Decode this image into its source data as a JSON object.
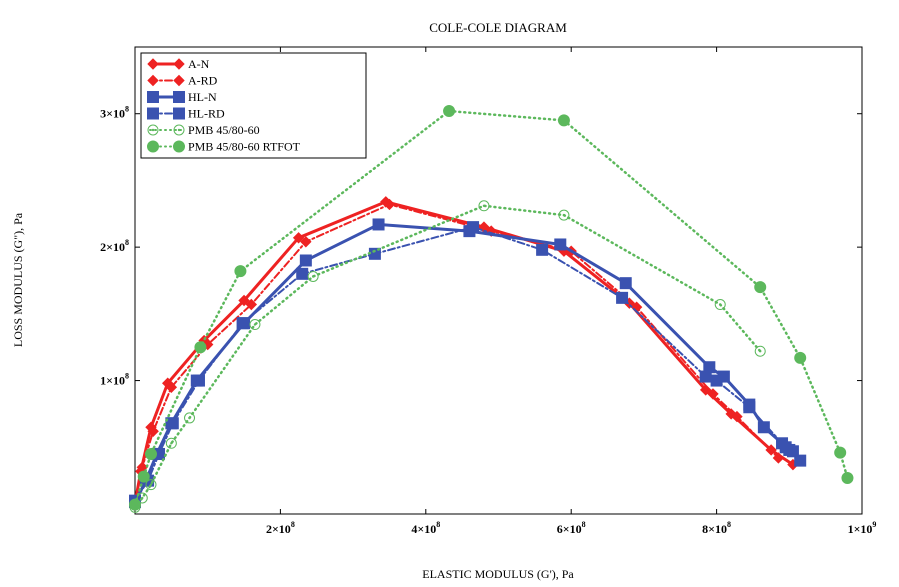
{
  "chart_data": {
    "type": "line",
    "title": "COLE-COLE DIAGRAM",
    "xlabel": "ELASTIC MODULUS (G'), Pa",
    "ylabel": "LOSS MODULUS (G\"), Pa",
    "xlim": [
      0,
      1000000000
    ],
    "ylim": [
      0,
      350000000
    ],
    "grid": false,
    "legend_position": "top-left",
    "x_ticks": [
      {
        "value": 200000000,
        "label": "2×10",
        "exp": "8"
      },
      {
        "value": 400000000,
        "label": "4×10",
        "exp": "8"
      },
      {
        "value": 600000000,
        "label": "6×10",
        "exp": "8"
      },
      {
        "value": 800000000,
        "label": "8×10",
        "exp": "8"
      },
      {
        "value": 1000000000,
        "label": "1×10",
        "exp": "9"
      }
    ],
    "y_ticks": [
      {
        "value": 100000000,
        "label": "1×10",
        "exp": "8"
      },
      {
        "value": 200000000,
        "label": "2×10",
        "exp": "8"
      },
      {
        "value": 300000000,
        "label": "3×10",
        "exp": "8"
      }
    ],
    "series": [
      {
        "name": "A-N",
        "color": "#ee2222",
        "dash": "solid",
        "marker": "diamond-filled",
        "points": [
          [
            0,
            8000000
          ],
          [
            8000000,
            32000000
          ],
          [
            22000000,
            65000000
          ],
          [
            45000000,
            98000000
          ],
          [
            95000000,
            130000000
          ],
          [
            150000000,
            160000000
          ],
          [
            225000000,
            207000000
          ],
          [
            345000000,
            234000000
          ],
          [
            480000000,
            215000000
          ],
          [
            590000000,
            197000000
          ],
          [
            680000000,
            158000000
          ],
          [
            785000000,
            93000000
          ],
          [
            820000000,
            75000000
          ],
          [
            875000000,
            48000000
          ],
          [
            905000000,
            37000000
          ]
        ]
      },
      {
        "name": "A-RD",
        "color": "#ee2222",
        "dash": "dash-dot",
        "marker": "diamond-filled",
        "points": [
          [
            0,
            10000000
          ],
          [
            10000000,
            35000000
          ],
          [
            25000000,
            62000000
          ],
          [
            50000000,
            95000000
          ],
          [
            100000000,
            127000000
          ],
          [
            160000000,
            157000000
          ],
          [
            235000000,
            204000000
          ],
          [
            350000000,
            232000000
          ],
          [
            490000000,
            212000000
          ],
          [
            600000000,
            197000000
          ],
          [
            690000000,
            155000000
          ],
          [
            795000000,
            90000000
          ],
          [
            828000000,
            73000000
          ],
          [
            885000000,
            42000000
          ]
        ]
      },
      {
        "name": "HL-N",
        "color": "#3a52b0",
        "dash": "solid",
        "marker": "square-filled",
        "points": [
          [
            0,
            9000000
          ],
          [
            15000000,
            25000000
          ],
          [
            30000000,
            45000000
          ],
          [
            50000000,
            68000000
          ],
          [
            85000000,
            100000000
          ],
          [
            150000000,
            143000000
          ],
          [
            235000000,
            190000000
          ],
          [
            335000000,
            217000000
          ],
          [
            460000000,
            212000000
          ],
          [
            585000000,
            202000000
          ],
          [
            675000000,
            173000000
          ],
          [
            790000000,
            110000000
          ],
          [
            810000000,
            103000000
          ],
          [
            845000000,
            82000000
          ],
          [
            865000000,
            65000000
          ],
          [
            890000000,
            53000000
          ],
          [
            900000000,
            48000000
          ],
          [
            915000000,
            40000000
          ]
        ]
      },
      {
        "name": "HL-RD",
        "color": "#3a52b0",
        "dash": "dash-dot",
        "marker": "square-filled",
        "points": [
          [
            0,
            10000000
          ],
          [
            18000000,
            25000000
          ],
          [
            33000000,
            45000000
          ],
          [
            52000000,
            68000000
          ],
          [
            88000000,
            100000000
          ],
          [
            148000000,
            143000000
          ],
          [
            230000000,
            180000000
          ],
          [
            330000000,
            195000000
          ],
          [
            465000000,
            215000000
          ],
          [
            560000000,
            198000000
          ],
          [
            670000000,
            162000000
          ],
          [
            785000000,
            103000000
          ],
          [
            800000000,
            100000000
          ],
          [
            845000000,
            80000000
          ],
          [
            895000000,
            50000000
          ],
          [
            905000000,
            47000000
          ]
        ]
      },
      {
        "name": "PMB 45/80-60",
        "color": "#5cb85c",
        "dash": "dotted",
        "marker": "circle-open",
        "points": [
          [
            0,
            5000000
          ],
          [
            10000000,
            12000000
          ],
          [
            22000000,
            22000000
          ],
          [
            50000000,
            53000000
          ],
          [
            75000000,
            72000000
          ],
          [
            165000000,
            142000000
          ],
          [
            245000000,
            178000000
          ],
          [
            480000000,
            231000000
          ],
          [
            590000000,
            224000000
          ],
          [
            805000000,
            157000000
          ],
          [
            860000000,
            122000000
          ]
        ]
      },
      {
        "name": "PMB 45/80-60 RTFOT",
        "color": "#5cb85c",
        "dash": "dotted",
        "marker": "circle-filled",
        "points": [
          [
            0,
            7000000
          ],
          [
            12000000,
            28000000
          ],
          [
            22000000,
            45000000
          ],
          [
            90000000,
            125000000
          ],
          [
            145000000,
            182000000
          ],
          [
            432000000,
            302000000
          ],
          [
            590000000,
            295000000
          ],
          [
            860000000,
            170000000
          ],
          [
            915000000,
            117000000
          ],
          [
            970000000,
            46000000
          ],
          [
            980000000,
            27000000
          ]
        ]
      }
    ]
  }
}
